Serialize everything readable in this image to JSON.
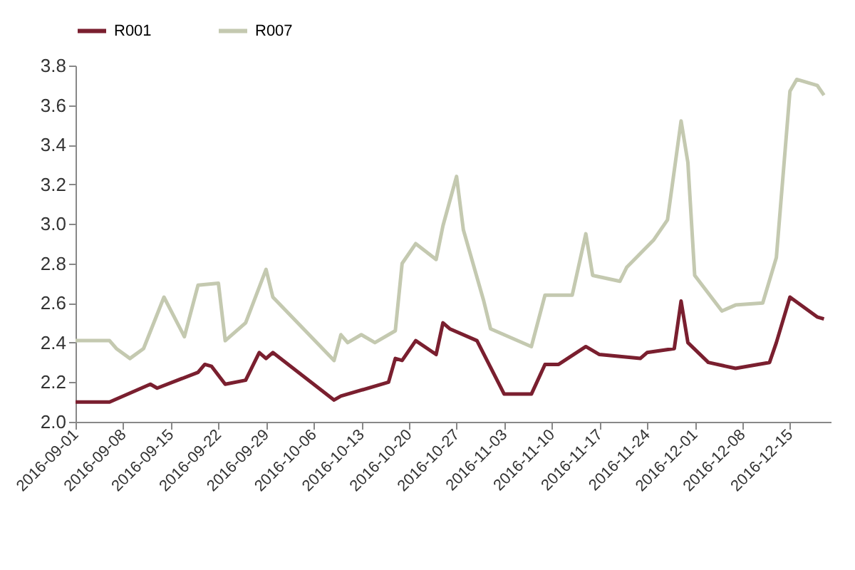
{
  "chart_data": {
    "type": "line",
    "legend": "top",
    "marker": "none",
    "line_style": "solid",
    "xlim": [
      "2016-09-01",
      "2016-12-21"
    ],
    "xticks": [
      "2016-09-01",
      "2016-09-08",
      "2016-09-15",
      "2016-09-22",
      "2016-09-29",
      "2016-10-06",
      "2016-10-13",
      "2016-10-20",
      "2016-10-27",
      "2016-11-03",
      "2016-11-10",
      "2016-11-17",
      "2016-11-24",
      "2016-12-01",
      "2016-12-08",
      "2016-12-15"
    ],
    "ylim": [
      2.0,
      3.8
    ],
    "yticks": [
      {
        "value": 2,
        "label": "2.0"
      },
      {
        "value": 2.2,
        "label": "2.2"
      },
      {
        "value": 2.4,
        "label": "2.4"
      },
      {
        "value": 2.6,
        "label": "2.6"
      },
      {
        "value": 2.8,
        "label": "2.8"
      },
      {
        "value": 3,
        "label": "3.0"
      },
      {
        "value": 3.2,
        "label": "3.2"
      },
      {
        "value": 3.4,
        "label": "3.4"
      },
      {
        "value": 3.6,
        "label": "3.6"
      },
      {
        "value": 3.8,
        "label": "3.8"
      }
    ],
    "series": [
      {
        "name": "R001",
        "color": "#7a1f2f",
        "x": [
          "2016-09-01",
          "2016-09-06",
          "2016-09-12",
          "2016-09-13",
          "2016-09-19",
          "2016-09-20",
          "2016-09-21",
          "2016-09-23",
          "2016-09-26",
          "2016-09-28",
          "2016-09-29",
          "2016-09-30",
          "2016-10-09",
          "2016-10-10",
          "2016-10-17",
          "2016-10-18",
          "2016-10-19",
          "2016-10-21",
          "2016-10-24",
          "2016-10-25",
          "2016-10-26",
          "2016-10-30",
          "2016-11-03",
          "2016-11-07",
          "2016-11-09",
          "2016-11-11",
          "2016-11-15",
          "2016-11-17",
          "2016-11-23",
          "2016-11-24",
          "2016-11-28",
          "2016-11-29",
          "2016-11-30",
          "2016-12-03",
          "2016-12-07",
          "2016-12-12",
          "2016-12-13",
          "2016-12-15",
          "2016-12-19",
          "2016-12-20"
        ],
        "values": [
          2.1,
          2.1,
          2.19,
          2.17,
          2.25,
          2.29,
          2.28,
          2.19,
          2.21,
          2.35,
          2.32,
          2.35,
          2.11,
          2.13,
          2.2,
          2.32,
          2.31,
          2.41,
          2.34,
          2.5,
          2.47,
          2.41,
          2.14,
          2.14,
          2.29,
          2.29,
          2.38,
          2.34,
          2.32,
          2.35,
          2.37,
          2.61,
          2.4,
          2.3,
          2.27,
          2.3,
          2.4,
          2.63,
          2.53,
          2.52
        ]
      },
      {
        "name": "R007",
        "color": "#c4c9b0",
        "x": [
          "2016-09-01",
          "2016-09-06",
          "2016-09-07",
          "2016-09-09",
          "2016-09-11",
          "2016-09-14",
          "2016-09-17",
          "2016-09-19",
          "2016-09-22",
          "2016-09-23",
          "2016-09-26",
          "2016-09-29",
          "2016-09-30",
          "2016-10-09",
          "2016-10-10",
          "2016-10-11",
          "2016-10-13",
          "2016-10-15",
          "2016-10-18",
          "2016-10-19",
          "2016-10-21",
          "2016-10-24",
          "2016-10-25",
          "2016-10-27",
          "2016-10-28",
          "2016-10-31",
          "2016-11-01",
          "2016-11-07",
          "2016-11-09",
          "2016-11-13",
          "2016-11-15",
          "2016-11-16",
          "2016-11-20",
          "2016-11-21",
          "2016-11-25",
          "2016-11-27",
          "2016-11-29",
          "2016-11-30",
          "2016-12-01",
          "2016-12-05",
          "2016-12-07",
          "2016-12-11",
          "2016-12-13",
          "2016-12-15",
          "2016-12-16",
          "2016-12-19",
          "2016-12-20"
        ],
        "values": [
          2.41,
          2.41,
          2.37,
          2.32,
          2.37,
          2.63,
          2.43,
          2.69,
          2.7,
          2.41,
          2.5,
          2.77,
          2.63,
          2.31,
          2.44,
          2.4,
          2.44,
          2.4,
          2.46,
          2.8,
          2.9,
          2.82,
          2.99,
          3.24,
          2.97,
          2.61,
          2.47,
          2.38,
          2.64,
          2.64,
          2.95,
          2.74,
          2.71,
          2.78,
          2.92,
          3.02,
          3.52,
          3.31,
          2.74,
          2.56,
          2.59,
          2.6,
          2.83,
          3.67,
          3.73,
          3.7,
          3.65
        ]
      }
    ]
  }
}
